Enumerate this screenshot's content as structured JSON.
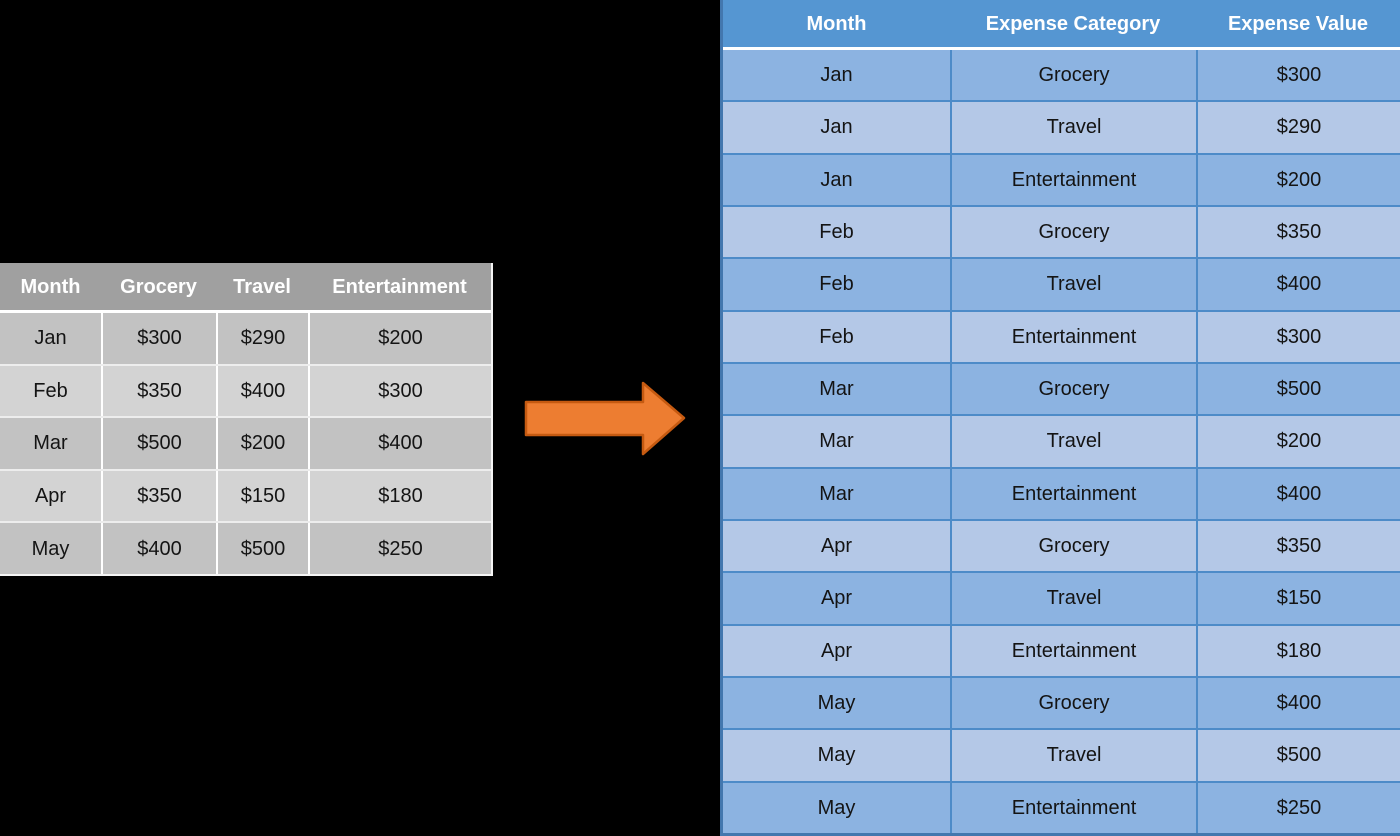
{
  "source_table": {
    "headers": [
      "Month",
      "Grocery",
      "Travel",
      "Entertainment"
    ],
    "rows": [
      [
        "Jan",
        "$300",
        "$290",
        "$200"
      ],
      [
        "Feb",
        "$350",
        "$400",
        "$300"
      ],
      [
        "Mar",
        "$500",
        "$200",
        "$400"
      ],
      [
        "Apr",
        "$350",
        "$150",
        "$180"
      ],
      [
        "May",
        "$400",
        "$500",
        "$250"
      ]
    ]
  },
  "result_table": {
    "headers": [
      "Month",
      "Expense Category",
      "Expense Value"
    ],
    "rows": [
      [
        "Jan",
        "Grocery",
        "$300"
      ],
      [
        "Jan",
        "Travel",
        "$290"
      ],
      [
        "Jan",
        "Entertainment",
        "$200"
      ],
      [
        "Feb",
        "Grocery",
        "$350"
      ],
      [
        "Feb",
        "Travel",
        "$400"
      ],
      [
        "Feb",
        "Entertainment",
        "$300"
      ],
      [
        "Mar",
        "Grocery",
        "$500"
      ],
      [
        "Mar",
        "Travel",
        "$200"
      ],
      [
        "Mar",
        "Entertainment",
        "$400"
      ],
      [
        "Apr",
        "Grocery",
        "$350"
      ],
      [
        "Apr",
        "Travel",
        "$150"
      ],
      [
        "Apr",
        "Entertainment",
        "$180"
      ],
      [
        "May",
        "Grocery",
        "$400"
      ],
      [
        "May",
        "Travel",
        "$500"
      ],
      [
        "May",
        "Entertainment",
        "$250"
      ]
    ]
  },
  "arrow": {
    "direction": "right"
  },
  "colors": {
    "background": "#000000",
    "source_header_bg": "#A0A0A0",
    "source_row_dark": "#C2C2C2",
    "source_row_light": "#D3D3D3",
    "result_header_bg": "#5596D2",
    "result_row_dark": "#8CB3E1",
    "result_row_light": "#B4C8E7",
    "result_divider": "#4D8BC8",
    "arrow_fill": "#ED7D31",
    "arrow_stroke": "#C55A11"
  }
}
